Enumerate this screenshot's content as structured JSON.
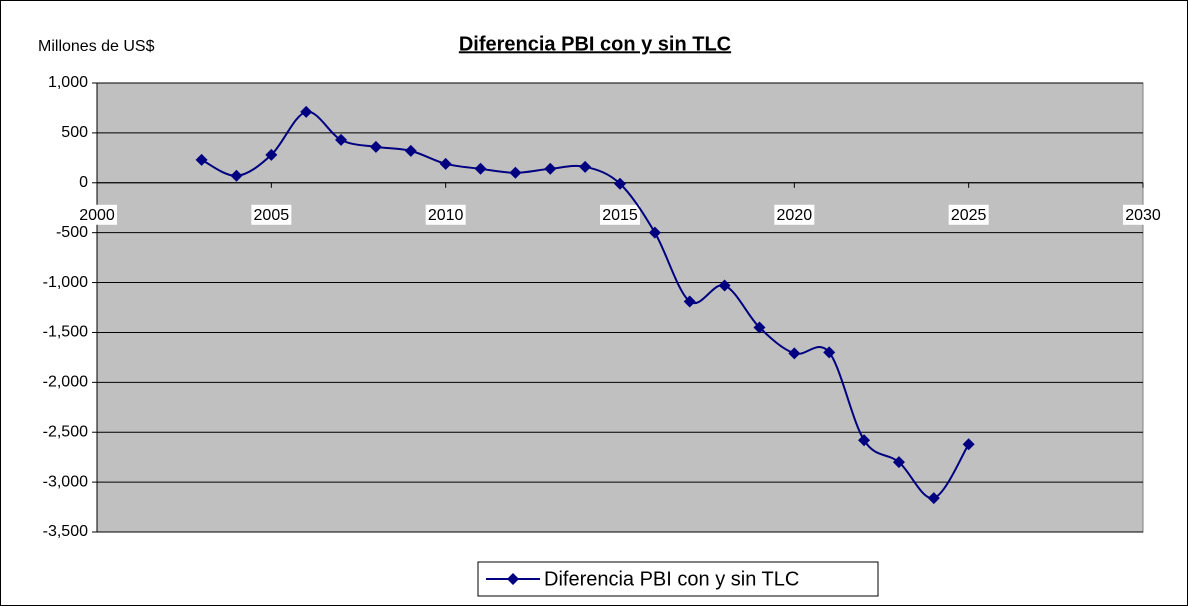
{
  "chart_data": {
    "type": "line",
    "title": "Diferencia PBI con y sin TLC",
    "y_label": "Millones de US$",
    "x": [
      2003,
      2004,
      2005,
      2006,
      2007,
      2008,
      2009,
      2010,
      2011,
      2012,
      2013,
      2014,
      2015,
      2016,
      2017,
      2018,
      2019,
      2020,
      2021,
      2022,
      2023,
      2024,
      2025
    ],
    "series": [
      {
        "name": "Diferencia PBI con y sin TLC",
        "color": "#000080",
        "values": [
          230,
          70,
          280,
          710,
          430,
          360,
          320,
          190,
          140,
          100,
          140,
          160,
          -10,
          -500,
          -1190,
          -1030,
          -1450,
          -1710,
          -1700,
          -2580,
          -2800,
          -3160,
          -2620
        ]
      }
    ],
    "xlim": [
      2000,
      2030
    ],
    "xticks": [
      2000,
      2005,
      2010,
      2015,
      2020,
      2025,
      2030
    ],
    "ylim": [
      -3500,
      1000
    ],
    "yticks": [
      {
        "value": 1000,
        "label": "1,000"
      },
      500,
      0,
      -500,
      {
        "value": -1000,
        "label": "-1,000"
      },
      {
        "value": -1500,
        "label": "-1,500"
      },
      {
        "value": -2000,
        "label": "-2,000"
      },
      {
        "value": -2500,
        "label": "-2,500"
      },
      {
        "value": -3000,
        "label": "-3,000"
      },
      {
        "value": -3500,
        "label": "-3,500"
      }
    ],
    "grid": true,
    "smooth": true,
    "legend": "bottom"
  }
}
